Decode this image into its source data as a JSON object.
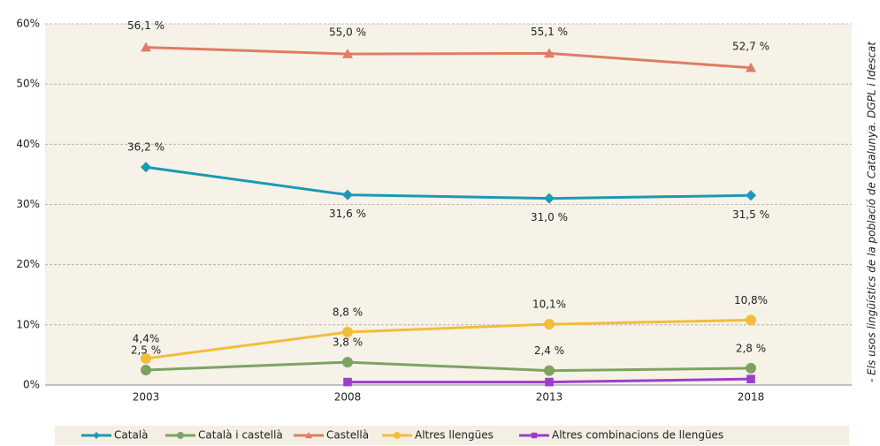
{
  "chart_data": {
    "type": "line",
    "categories": [
      "2003",
      "2008",
      "2013",
      "2018"
    ],
    "series": [
      {
        "name": "Català",
        "color": "#1b9ab4",
        "marker": "diamond",
        "values": [
          36.2,
          31.6,
          31.0,
          31.5
        ],
        "value_labels": [
          "36,2 %",
          "31,6 %",
          "31,0 %",
          "31,5 %"
        ]
      },
      {
        "name": "Català i castellà",
        "color": "#7da363",
        "marker": "circle",
        "values": [
          2.5,
          3.8,
          2.4,
          2.8
        ],
        "value_labels": [
          "2,5 %",
          "3,8 %",
          "2,4 %",
          "2,8 %"
        ]
      },
      {
        "name": "Castellà",
        "color": "#e07b66",
        "marker": "triangle",
        "values": [
          56.1,
          55.0,
          55.1,
          52.7
        ],
        "value_labels": [
          "56,1 %",
          "55,0 %",
          "55,1 %",
          "52,7 %"
        ]
      },
      {
        "name": "Altres llengües",
        "color": "#f2bd3c",
        "marker": "circle",
        "values": [
          4.4,
          8.8,
          10.1,
          10.8
        ],
        "value_labels": [
          "4,4%",
          "8,8 %",
          "10,1%",
          "10,8%"
        ]
      },
      {
        "name": "Altres combinacions de llengües",
        "color": "#9b3fcb",
        "marker": "square",
        "values": [
          null,
          0.5,
          0.5,
          1.0
        ],
        "value_labels": [
          null,
          null,
          null,
          null
        ]
      }
    ],
    "ylim": [
      0,
      60
    ],
    "yticks": [
      {
        "value": 0,
        "label": "0%"
      },
      {
        "value": 10,
        "label": "10%"
      },
      {
        "value": 20,
        "label": "20%"
      },
      {
        "value": 30,
        "label": "30%"
      },
      {
        "value": 40,
        "label": "40%"
      },
      {
        "value": 50,
        "label": "50%"
      },
      {
        "value": 60,
        "label": "60%"
      }
    ],
    "grid": true,
    "legend": "bottom",
    "source": "- Els usos lingüístics de la població de Catalunya. DGPL i Idescat"
  }
}
